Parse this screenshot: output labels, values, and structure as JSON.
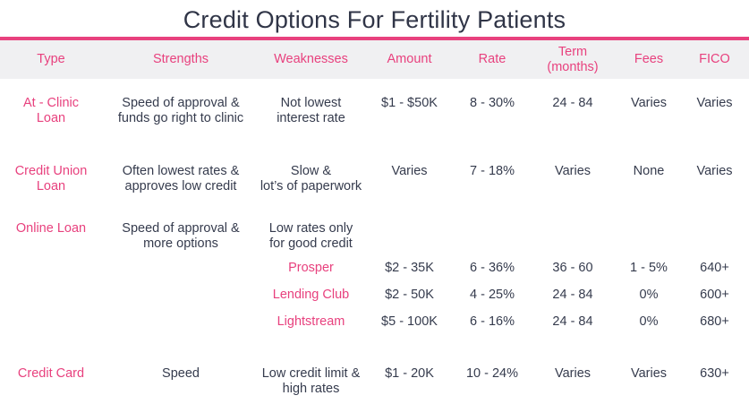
{
  "title": "Credit Options For Fertility Patients",
  "colors": {
    "accent": "#e8417e",
    "text": "#353b4d",
    "header_bg": "#f0f0f2"
  },
  "chart_data": {
    "type": "table",
    "title": "Credit Options For Fertility Patients",
    "columns": [
      "Type",
      "Strengths",
      "Weaknesses",
      "Amount",
      "Rate",
      "Term\n(months)",
      "Fees",
      "FICO"
    ],
    "rows": [
      {
        "name": "At - Clinic Loan",
        "cells": [
          "At - Clinic\nLoan",
          "Speed of approval &\nfunds go right to clinic",
          "Not lowest\ninterest rate",
          "$1 - $50K",
          "8 - 30%",
          "24 - 84",
          "Varies",
          "Varies"
        ]
      },
      {
        "name": "Credit Union Loan",
        "cells": [
          "Credit Union\nLoan",
          "Often lowest rates &\napproves low credit",
          "Slow &\nlot’s of paperwork",
          "Varies",
          "7 - 18%",
          "Varies",
          "None",
          "Varies"
        ]
      },
      {
        "name": "Online Loan",
        "cells": [
          "Online Loan",
          "Speed of approval &\nmore options",
          "Low rates only\nfor good credit",
          "",
          "",
          "",
          "",
          ""
        ]
      },
      {
        "name": "Prosper",
        "cells": [
          "",
          "",
          "Prosper",
          "$2 - 35K",
          "6 - 36%",
          "36 - 60",
          "1 - 5%",
          "640+"
        ]
      },
      {
        "name": "Lending Club",
        "cells": [
          "",
          "",
          "Lending Club",
          "$2 - 50K",
          "4 - 25%",
          "24 - 84",
          "0%",
          "600+"
        ]
      },
      {
        "name": "Lightstream",
        "cells": [
          "",
          "",
          "Lightstream",
          "$5 - 100K",
          "6 - 16%",
          "24 - 84",
          "0%",
          "680+"
        ]
      },
      {
        "name": "Credit Card",
        "cells": [
          "Credit Card",
          "Speed",
          "Low credit limit &\nhigh rates",
          "$1 - 20K",
          "10 - 24%",
          "Varies",
          "Varies",
          "630+"
        ]
      }
    ]
  }
}
